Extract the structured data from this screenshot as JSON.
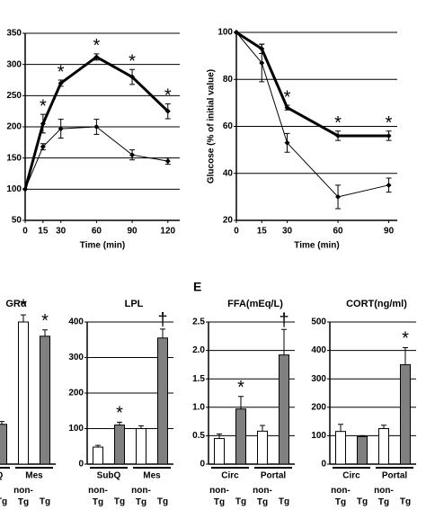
{
  "chart_data": [
    {
      "type": "line",
      "xlabel": "Time (min)",
      "x": [
        0,
        15,
        30,
        60,
        90,
        120
      ],
      "xlim": [
        0,
        130
      ],
      "xticks": [
        0,
        15,
        30,
        60,
        90,
        120
      ],
      "ylim": [
        50,
        350
      ],
      "yticks": [
        50,
        100,
        150,
        200,
        250,
        300,
        350
      ],
      "grid": true,
      "series": [
        {
          "color": "#000000",
          "line_width": 3,
          "values": [
            100,
            205,
            270,
            312,
            280,
            225
          ],
          "errors": [
            0,
            15,
            5,
            5,
            12,
            12
          ],
          "significance": [
            null,
            "*",
            "*",
            "*",
            "*",
            "*"
          ]
        },
        {
          "color": "#000000",
          "line_width": 1,
          "values": [
            100,
            168,
            197,
            200,
            155,
            145
          ],
          "errors": [
            0,
            5,
            15,
            12,
            8,
            5
          ]
        }
      ]
    },
    {
      "type": "line",
      "xlabel": "Time (min)",
      "ylabel": "Glucose (% of initial value)",
      "x": [
        0,
        15,
        30,
        60,
        90
      ],
      "xlim": [
        0,
        95
      ],
      "xticks": [
        0,
        15,
        30,
        60,
        90
      ],
      "ylim": [
        20,
        100
      ],
      "yticks": [
        20,
        40,
        60,
        80,
        100
      ],
      "grid": true,
      "series": [
        {
          "color": "#000000",
          "line_width": 3,
          "values": [
            100,
            93,
            68,
            56,
            56
          ],
          "errors": [
            0,
            2,
            1,
            2,
            2
          ],
          "significance": [
            null,
            null,
            "*",
            "*",
            "*"
          ]
        },
        {
          "color": "#000000",
          "line_width": 1,
          "values": [
            100,
            87,
            53,
            30,
            35
          ],
          "errors": [
            0,
            8,
            4,
            5,
            3
          ]
        }
      ]
    },
    {
      "type": "bar",
      "title": "GRα",
      "ylim": [
        0,
        400
      ],
      "groups": [
        "SubQ",
        "Mes"
      ],
      "categories": [
        "non-Tg",
        "Tg",
        "non-Tg",
        "Tg"
      ],
      "values": [
        null,
        112,
        400,
        360
      ],
      "errors": [
        null,
        8,
        20,
        18
      ],
      "colors": [
        "#ffffff",
        "#808080",
        "#ffffff",
        "#808080"
      ],
      "significance": [
        null,
        null,
        "*",
        "*"
      ]
    },
    {
      "type": "bar",
      "title": "LPL",
      "ylim": [
        0,
        400
      ],
      "yticks": [
        0,
        100,
        200,
        300,
        400
      ],
      "grid": true,
      "groups": [
        "SubQ",
        "Mes"
      ],
      "categories": [
        "non-Tg",
        "Tg",
        "non-Tg",
        "Tg"
      ],
      "values": [
        48,
        110,
        100,
        355
      ],
      "errors": [
        5,
        8,
        8,
        25
      ],
      "colors": [
        "#ffffff",
        "#808080",
        "#ffffff",
        "#808080"
      ],
      "significance": [
        null,
        "*",
        null,
        "†"
      ]
    },
    {
      "type": "bar",
      "panel_label": "E",
      "title": "FFA(mEq/L)",
      "ylim": [
        0,
        2.5
      ],
      "yticks": [
        0,
        0.5,
        {
          "value": 1,
          "label": "1.0"
        },
        1.5,
        {
          "value": 2,
          "label": "2.0"
        },
        2.5
      ],
      "grid": true,
      "groups": [
        "Circ",
        "Portal"
      ],
      "categories": [
        "non-Tg",
        "Tg",
        "non-Tg",
        "Tg"
      ],
      "values": [
        0.45,
        0.97,
        0.58,
        1.92
      ],
      "errors": [
        0.08,
        0.22,
        0.1,
        0.45
      ],
      "colors": [
        "#ffffff",
        "#808080",
        "#ffffff",
        "#808080"
      ],
      "significance": [
        null,
        "*",
        null,
        "†"
      ]
    },
    {
      "type": "bar",
      "title": "CORT(ng/ml)",
      "ylim": [
        0,
        500
      ],
      "yticks": [
        0,
        100,
        200,
        300,
        400,
        500
      ],
      "grid": true,
      "groups": [
        "Circ",
        "Portal"
      ],
      "categories": [
        "non-Tg",
        "Tg",
        "non-Tg",
        "Tg"
      ],
      "values": [
        115,
        97,
        125,
        350
      ],
      "errors": [
        25,
        3,
        12,
        60
      ],
      "colors": [
        "#ffffff",
        "#808080",
        "#ffffff",
        "#808080"
      ],
      "significance": [
        null,
        null,
        null,
        "*"
      ]
    }
  ]
}
